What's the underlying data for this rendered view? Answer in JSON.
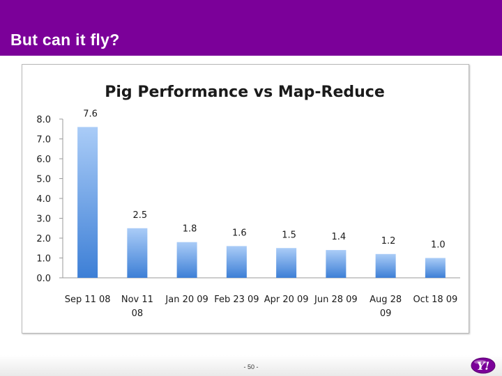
{
  "slide": {
    "title": "But can it fly?",
    "page_number": "- 50 -"
  },
  "logo": {
    "text": "Y!",
    "icon": "yahoo-logo-icon"
  },
  "colors": {
    "title_bar": "#7b0099",
    "bar_top": "#aaccf7",
    "bar_bottom": "#3d7fd6",
    "logo_purple": "#7b0099"
  },
  "chart_data": {
    "type": "bar",
    "title": "Pig Performance vs Map-Reduce",
    "xlabel": "",
    "ylabel": "",
    "categories": [
      [
        "Sep 11 08"
      ],
      [
        "Nov 11",
        "08"
      ],
      [
        "Jan 20 09"
      ],
      [
        "Feb 23 09"
      ],
      [
        "Apr 20 09"
      ],
      [
        "Jun 28 09"
      ],
      [
        "Aug 28",
        "09"
      ],
      [
        "Oct 18 09"
      ]
    ],
    "values": [
      7.6,
      2.5,
      1.8,
      1.6,
      1.5,
      1.4,
      1.2,
      1.0
    ],
    "value_labels": [
      "7.6",
      "2.5",
      "1.8",
      "1.6",
      "1.5",
      "1.4",
      "1.2",
      "1.0"
    ],
    "ylim": [
      0,
      8
    ],
    "yticks": [
      "0.0",
      "1.0",
      "2.0",
      "3.0",
      "4.0",
      "5.0",
      "6.0",
      "7.0",
      "8.0"
    ],
    "grid": false,
    "legend": "none"
  }
}
